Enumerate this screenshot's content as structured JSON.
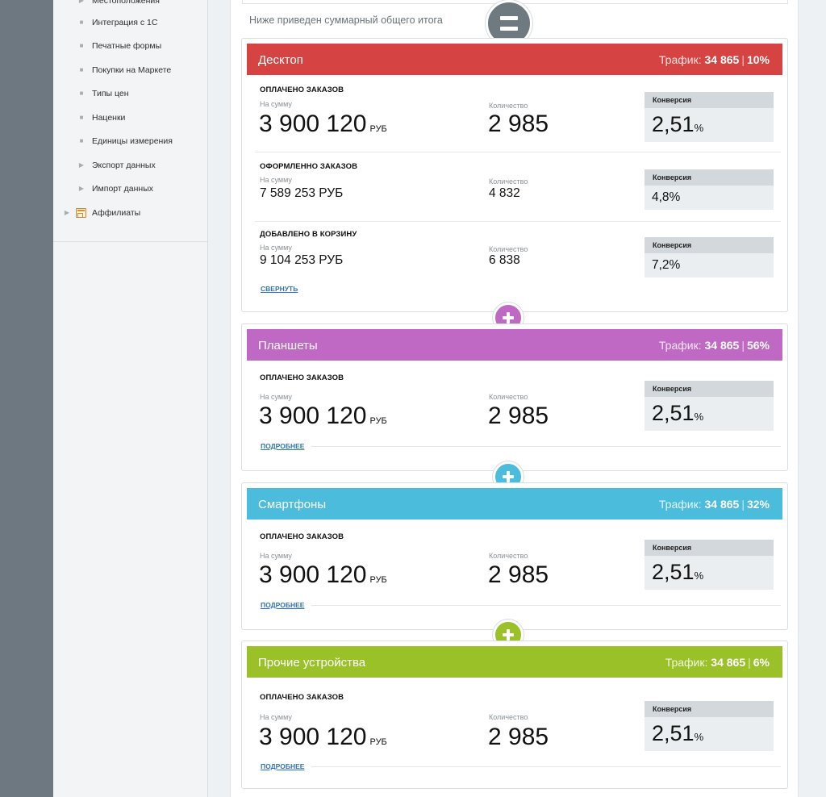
{
  "sidebar": {
    "items": [
      {
        "label": "Местоположения",
        "marker": "▶"
      },
      {
        "label": "Интеграция с 1С",
        "marker": "■"
      },
      {
        "label": "Печатные формы",
        "marker": "■"
      },
      {
        "label": "Покупки на Маркете",
        "marker": "■"
      },
      {
        "label": "Типы цен",
        "marker": "■"
      },
      {
        "label": "Наценки",
        "marker": "■"
      },
      {
        "label": "Единицы измерения",
        "marker": "■"
      },
      {
        "label": "Экспорт данных",
        "marker": "▶"
      },
      {
        "label": "Импорт данных",
        "marker": "▶"
      },
      {
        "label": "Аффилиаты",
        "marker": "▶"
      }
    ]
  },
  "summary": {
    "text": "Ниже приведен суммарный общего итога"
  },
  "cards": [
    {
      "title": "Десктоп",
      "color": "#d64343",
      "traffic_label": "Трафик:",
      "traffic_value": "34 865",
      "traffic_percent": "10%",
      "sections": [
        {
          "title": "ОПЛАЧЕНО ЗАКАЗОВ",
          "sum_label": "На сумму",
          "sum_value": "3 900 120",
          "sum_unit": "РУБ",
          "qty_label": "Количество",
          "qty_value": "2 985",
          "conv_label": "Конверсия",
          "conv_value": "2,51",
          "conv_unit": "%"
        },
        {
          "title": "ОФОРМЛЕННО ЗАКАЗОВ",
          "sum_label": "На сумму",
          "sum_value": "7 589 253 РУБ",
          "qty_label": "Количество",
          "qty_value": "4 832",
          "conv_label": "Конверсия",
          "conv_value": "4,8%"
        },
        {
          "title": "ДОБАВЛЕНО В КОРЗИНУ",
          "sum_label": "На сумму",
          "sum_value": "9 104 253 РУБ",
          "qty_label": "Количество",
          "qty_value": "6 838",
          "conv_label": "Конверсия",
          "conv_value": "7,2%"
        }
      ],
      "link": "СВЕРНУТЬ"
    },
    {
      "title": "Планшеты",
      "color": "#bf68c4",
      "plus_color": "#bf68c4",
      "traffic_label": "Трафик:",
      "traffic_value": "34 865",
      "traffic_percent": "56%",
      "sections": [
        {
          "title": "ОПЛАЧЕНО ЗАКАЗОВ",
          "sum_label": "На сумму",
          "sum_value": "3 900 120",
          "sum_unit": "РУБ",
          "qty_label": "Количество",
          "qty_value": "2 985",
          "conv_label": "Конверсия",
          "conv_value": "2,51",
          "conv_unit": "%"
        }
      ],
      "link": "ПОДРОБНЕЕ"
    },
    {
      "title": "Смартфоны",
      "color": "#4bbcdb",
      "plus_color": "#4bbcdb",
      "traffic_label": "Трафик:",
      "traffic_value": "34 865",
      "traffic_percent": "32%",
      "sections": [
        {
          "title": "ОПЛАЧЕНО ЗАКАЗОВ",
          "sum_label": "На сумму",
          "sum_value": "3 900 120",
          "sum_unit": "РУБ",
          "qty_label": "Количество",
          "qty_value": "2 985",
          "conv_label": "Конверсия",
          "conv_value": "2,51",
          "conv_unit": "%"
        }
      ],
      "link": "ПОДРОБНЕЕ"
    },
    {
      "title": "Прочие устройства",
      "color": "#9ac127",
      "plus_color": "#9ac127",
      "traffic_label": "Трафик:",
      "traffic_value": "34 865",
      "traffic_percent": "6%",
      "sections": [
        {
          "title": "ОПЛАЧЕНО ЗАКАЗОВ",
          "sum_label": "На сумму",
          "sum_value": "3 900 120",
          "sum_unit": "РУБ",
          "qty_label": "Количество",
          "qty_value": "2 985",
          "conv_label": "Конверсия",
          "conv_value": "2,51",
          "conv_unit": "%"
        }
      ],
      "link": "ПОДРОБНЕЕ"
    }
  ]
}
